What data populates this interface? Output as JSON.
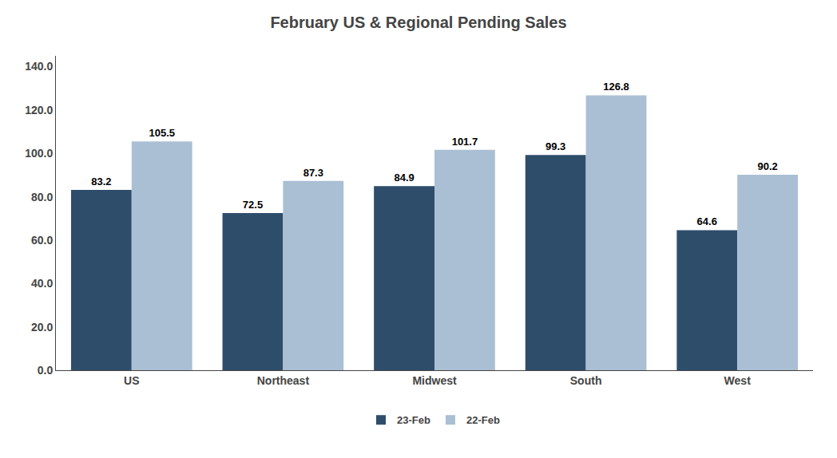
{
  "chart_data": {
    "type": "bar",
    "title": "February US & Regional Pending Sales",
    "categories": [
      "US",
      "Northeast",
      "Midwest",
      "South",
      "West"
    ],
    "series": [
      {
        "name": "23-Feb",
        "color": "#2E4D6B",
        "values": [
          83.2,
          72.5,
          84.9,
          99.3,
          64.6
        ]
      },
      {
        "name": "22-Feb",
        "color": "#AABFD4",
        "values": [
          105.5,
          87.3,
          101.7,
          126.8,
          90.2
        ]
      }
    ],
    "ylim": [
      0,
      145
    ],
    "yticks": [
      {
        "value": 0,
        "label": "0.0"
      },
      {
        "value": 20,
        "label": "20.0"
      },
      {
        "value": 40,
        "label": "40.0"
      },
      {
        "value": 60,
        "label": "60.0"
      },
      {
        "value": 80,
        "label": "80.0"
      },
      {
        "value": 100,
        "label": "100.0"
      },
      {
        "value": 120,
        "label": "120.0"
      },
      {
        "value": 140,
        "label": "140.0"
      }
    ],
    "grid": false,
    "legend": "bottom",
    "data_labels": true
  }
}
